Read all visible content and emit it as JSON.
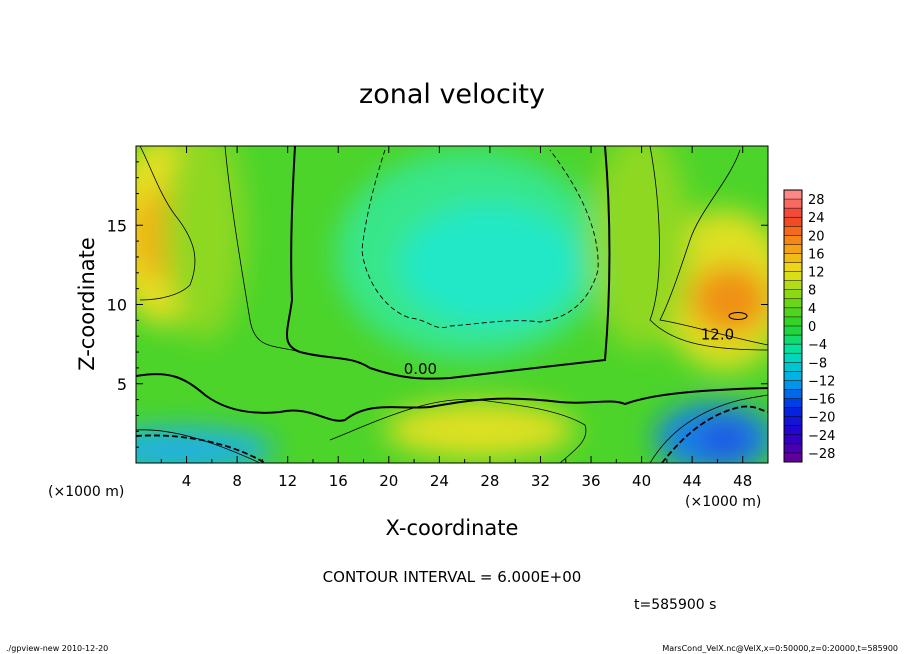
{
  "chart_data": {
    "type": "heatmap",
    "title": "zonal velocity",
    "xlabel": "X-coordinate",
    "ylabel": "Z-coordinate",
    "x_unit_left": "(×1000 m)",
    "x_unit_right": "(×1000 m)",
    "xlim": [
      0,
      50
    ],
    "ylim": [
      0,
      20
    ],
    "x_ticks": [
      4,
      8,
      12,
      16,
      20,
      24,
      28,
      32,
      36,
      40,
      44,
      48
    ],
    "y_ticks": [
      5,
      10,
      15
    ],
    "colorbar": {
      "labels": [
        "28",
        "24",
        "20",
        "16",
        "12",
        "8",
        "4",
        "0",
        "−4",
        "−8",
        "−12",
        "−16",
        "−20",
        "−24",
        "−28"
      ],
      "min": -30,
      "max": 30,
      "step": 2
    },
    "contour_labels": [
      {
        "text": "0.00",
        "x": 22.5,
        "z": 5.6
      },
      {
        "text": "12.0",
        "x": 46.0,
        "z": 7.8
      }
    ],
    "contour_interval_text": "CONTOUR INTERVAL = 6.000E+00",
    "time_text": "t=585900 s",
    "footer_left": "./gpview-new   2010-12-20",
    "footer_right": "MarsCond_VelX.nc@VelX,x=0:50000,z=0:20000,t=585900"
  }
}
